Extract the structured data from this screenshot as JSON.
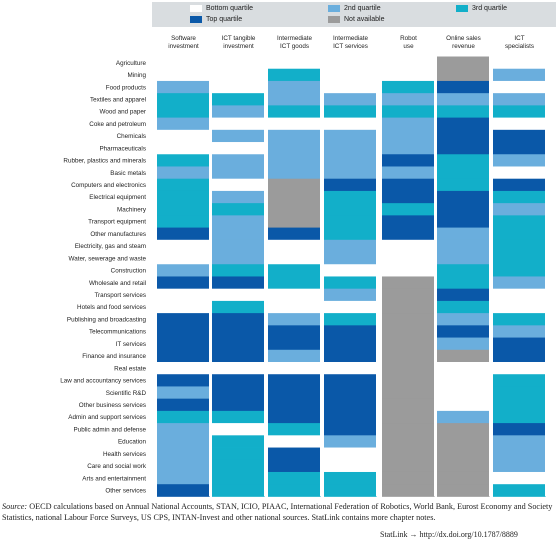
{
  "legend": {
    "items": [
      {
        "label": "Bottom quartile",
        "color": "#ffffff"
      },
      {
        "label": "2nd quartile",
        "color": "#6aaedd"
      },
      {
        "label": "3rd quartile",
        "color": "#12afc9"
      },
      {
        "label": "Top quartile",
        "color": "#0a58a8"
      },
      {
        "label": "Not available",
        "color": "#9b9b9b"
      }
    ]
  },
  "chart_data": {
    "type": "heatmap",
    "columns": [
      "Software investment",
      "ICT tangible investment",
      "Intermediate ICT goods",
      "Intermediate ICT services",
      "Robot use",
      "Online sales revenue",
      "ICT specialists"
    ],
    "rows": [
      "Agriculture",
      "Mining",
      "Food products",
      "Textiles and apparel",
      "Wood and paper",
      "Coke and petroleum",
      "Chemicals",
      "Pharmaceuticals",
      "Rubber, plastics and minerals",
      "Basic metals",
      "Computers and electronics",
      "Electrical equipment",
      "Machinery",
      "Transport equipment",
      "Other manufactures",
      "Electricity, gas and steam",
      "Water, sewerage and waste",
      "Construction",
      "Wholesale and retail",
      "Transport services",
      "Hotels and food services",
      "Publishing and broadcasting",
      "Telecommunications",
      "IT services",
      "Finance and insurance",
      "Real estate",
      "Law and accountancy services",
      "Scientific R&D",
      "Other business services",
      "Admin and support services",
      "Public admin and defense",
      "Education",
      "Health services",
      "Care and social work",
      "Arts and entertainment",
      "Other services"
    ],
    "category_codes": {
      "1": "Bottom quartile",
      "2": "2nd quartile",
      "3": "3rd quartile",
      "4": "Top quartile",
      "0": "Not available"
    },
    "values": [
      [
        1,
        1,
        1,
        1,
        1,
        0,
        1
      ],
      [
        1,
        1,
        3,
        1,
        1,
        0,
        2
      ],
      [
        2,
        1,
        2,
        1,
        3,
        4,
        1
      ],
      [
        3,
        3,
        2,
        2,
        2,
        2,
        2
      ],
      [
        3,
        2,
        3,
        3,
        3,
        3,
        3
      ],
      [
        2,
        1,
        1,
        1,
        2,
        4,
        1
      ],
      [
        1,
        2,
        2,
        2,
        2,
        4,
        4
      ],
      [
        1,
        1,
        2,
        2,
        2,
        4,
        4
      ],
      [
        3,
        2,
        2,
        2,
        4,
        3,
        2
      ],
      [
        2,
        2,
        2,
        2,
        2,
        3,
        1
      ],
      [
        3,
        1,
        0,
        4,
        4,
        3,
        4
      ],
      [
        3,
        2,
        0,
        3,
        4,
        4,
        3
      ],
      [
        3,
        3,
        0,
        3,
        3,
        4,
        2
      ],
      [
        3,
        2,
        0,
        3,
        4,
        4,
        3
      ],
      [
        4,
        2,
        4,
        3,
        4,
        2,
        3
      ],
      [
        1,
        2,
        1,
        2,
        1,
        2,
        3
      ],
      [
        1,
        2,
        1,
        2,
        1,
        2,
        3
      ],
      [
        2,
        3,
        3,
        1,
        1,
        3,
        3
      ],
      [
        4,
        4,
        3,
        3,
        0,
        3,
        2
      ],
      [
        1,
        1,
        1,
        2,
        0,
        4,
        1
      ],
      [
        1,
        3,
        1,
        1,
        0,
        3,
        1
      ],
      [
        4,
        4,
        2,
        3,
        0,
        2,
        3
      ],
      [
        4,
        4,
        4,
        4,
        0,
        4,
        2
      ],
      [
        4,
        4,
        4,
        4,
        0,
        2,
        4
      ],
      [
        4,
        4,
        2,
        4,
        0,
        0,
        4
      ],
      [
        1,
        1,
        1,
        1,
        0,
        1,
        1
      ],
      [
        4,
        4,
        4,
        4,
        0,
        1,
        3
      ],
      [
        2,
        4,
        4,
        4,
        0,
        1,
        3
      ],
      [
        4,
        4,
        4,
        4,
        0,
        1,
        3
      ],
      [
        3,
        3,
        4,
        4,
        0,
        2,
        3
      ],
      [
        2,
        1,
        3,
        4,
        0,
        0,
        4
      ],
      [
        2,
        3,
        1,
        2,
        0,
        0,
        2
      ],
      [
        2,
        3,
        4,
        1,
        0,
        0,
        2
      ],
      [
        2,
        3,
        4,
        1,
        0,
        0,
        2
      ],
      [
        2,
        3,
        3,
        3,
        0,
        0,
        1
      ],
      [
        4,
        3,
        3,
        3,
        0,
        0,
        3
      ]
    ]
  },
  "footer": {
    "source_label": "Source:",
    "source_text": "OECD calculations based on Annual National Accounts, STAN, ICIO, PIAAC, International Federation of Robotics, World Bank, Eurost Economy and Society Statistics, national Labour Force Surveys, US CPS, INTAN-Invest and other national sources. StatLink contains more chapter notes.",
    "statlink": "StatLink → http://dx.doi.org/10.1787/8889"
  }
}
